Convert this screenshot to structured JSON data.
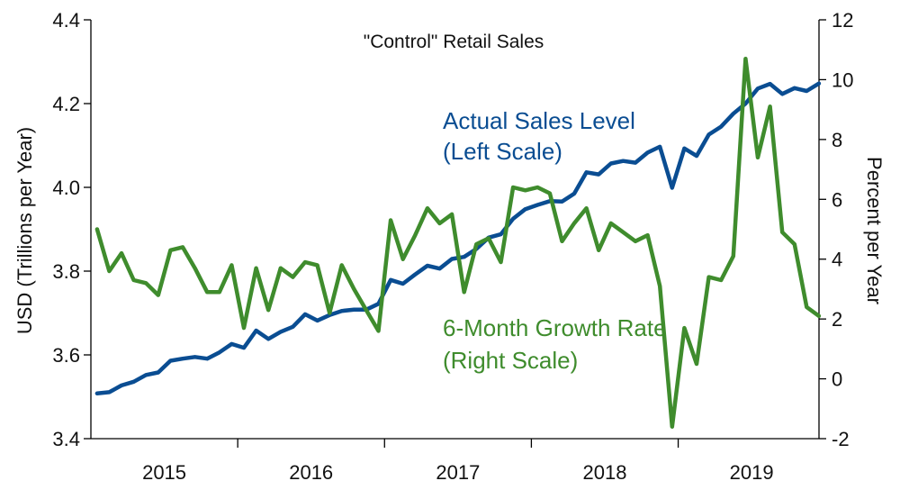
{
  "chart_data": {
    "type": "line",
    "title": "\"Control\" Retail Sales",
    "xlabel": "",
    "ylabel_left": "USD (Trillions per Year)",
    "ylabel_right": "Percent per Year",
    "x_range": [
      2014.958,
      2019.917
    ],
    "year_ticks": [
      "2015",
      "2016",
      "2017",
      "2018",
      "2019"
    ],
    "left_axis": {
      "ylim": [
        3.4,
        4.4
      ],
      "ticks": [
        "3.4",
        "3.6",
        "3.8",
        "4.0",
        "4.2",
        "4.4"
      ]
    },
    "right_axis": {
      "ylim": [
        -2,
        12
      ],
      "ticks": [
        "-2",
        "0",
        "2",
        "4",
        "6",
        "8",
        "10",
        "12"
      ]
    },
    "colors": {
      "sales": "#0a4d92",
      "growth": "#3f8c2d",
      "axis": "#000000"
    },
    "series": [
      {
        "name": "Actual Sales Level",
        "axis": "left",
        "color": "#0a4d92",
        "annotation": [
          "Actual Sales Level",
          "(Left Scale)"
        ],
        "start_x": 2015.0,
        "step": 0.083333,
        "values": [
          3.508,
          3.511,
          3.527,
          3.536,
          3.552,
          3.558,
          3.586,
          3.591,
          3.595,
          3.591,
          3.606,
          3.626,
          3.617,
          3.658,
          3.638,
          3.655,
          3.667,
          3.697,
          3.682,
          3.695,
          3.705,
          3.708,
          3.708,
          3.722,
          3.779,
          3.77,
          3.792,
          3.813,
          3.806,
          3.829,
          3.834,
          3.853,
          3.88,
          3.888,
          3.925,
          3.948,
          3.958,
          3.967,
          3.966,
          3.985,
          4.036,
          4.031,
          4.057,
          4.063,
          4.059,
          4.083,
          4.097,
          3.999,
          4.093,
          4.075,
          4.126,
          4.145,
          4.176,
          4.2,
          4.236,
          4.247,
          4.223,
          4.237,
          4.23,
          4.248
        ]
      },
      {
        "name": "6-Month Growth Rate",
        "axis": "right",
        "color": "#3f8c2d",
        "annotation": [
          "6-Month Growth Rate",
          "(Right Scale)"
        ],
        "start_x": 2015.0,
        "step": 0.083333,
        "values": [
          5.0,
          3.6,
          4.2,
          3.3,
          3.2,
          2.8,
          4.3,
          4.4,
          3.7,
          2.9,
          2.9,
          3.8,
          1.7,
          3.7,
          2.3,
          3.7,
          3.4,
          3.9,
          3.8,
          2.2,
          3.8,
          3.0,
          2.3,
          1.6,
          5.3,
          4.0,
          4.8,
          5.7,
          5.2,
          5.5,
          2.9,
          4.5,
          4.7,
          3.9,
          6.4,
          6.3,
          6.4,
          6.2,
          4.6,
          5.2,
          5.7,
          4.3,
          5.2,
          4.9,
          4.6,
          4.8,
          3.1,
          -1.6,
          1.7,
          0.5,
          3.4,
          3.3,
          4.1,
          10.7,
          7.4,
          9.1,
          4.9,
          4.5,
          2.4,
          2.1
        ]
      }
    ]
  }
}
